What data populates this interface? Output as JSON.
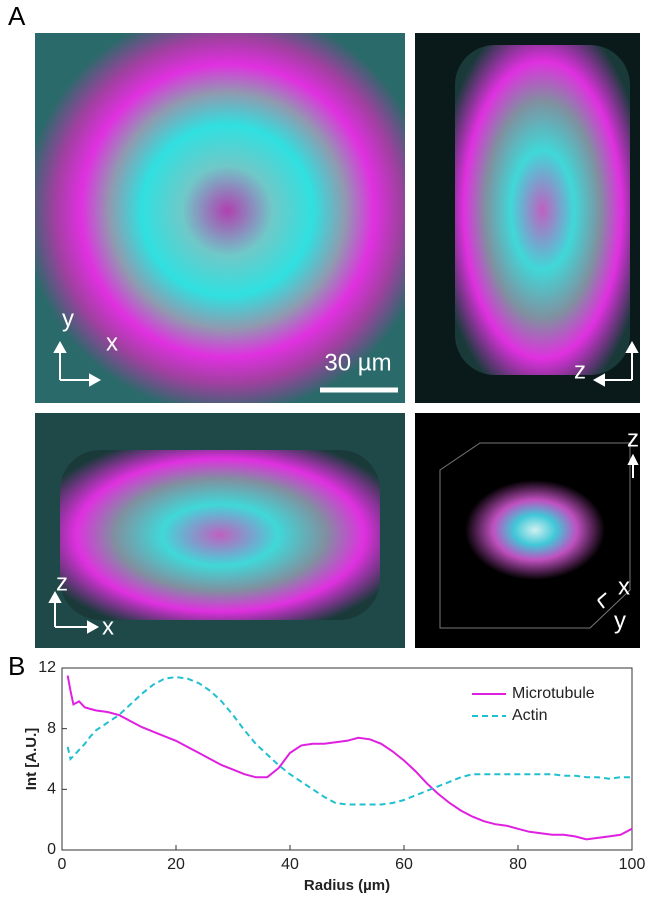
{
  "panel_a": {
    "label": "A",
    "annotations": [
      "y",
      "x",
      "30 µm",
      "z",
      "z",
      "x",
      "z",
      "x",
      "y"
    ]
  },
  "panel_b": {
    "label": "B"
  },
  "chart_data": {
    "type": "line",
    "x_label": "Radius (µm)",
    "y_label": "Int [A.U.]",
    "x": [
      1,
      1.5,
      2,
      3,
      4,
      5,
      6,
      8,
      10,
      12,
      14,
      16,
      18,
      20,
      22,
      24,
      26,
      28,
      30,
      32,
      34,
      36,
      38,
      40,
      42,
      44,
      46,
      48,
      50,
      52,
      54,
      56,
      58,
      60,
      62,
      64,
      66,
      68,
      70,
      72,
      74,
      76,
      78,
      80,
      82,
      84,
      86,
      88,
      90,
      92,
      94,
      96,
      98,
      100
    ],
    "series": [
      {
        "name": "Microtubule",
        "color": "#e020e0",
        "dash": "solid",
        "values": [
          11.5,
          10.5,
          9.6,
          9.8,
          9.4,
          9.3,
          9.2,
          9.1,
          8.9,
          8.5,
          8.1,
          7.8,
          7.5,
          7.2,
          6.8,
          6.4,
          6.0,
          5.6,
          5.3,
          5.0,
          4.8,
          4.8,
          5.4,
          6.4,
          6.9,
          7.0,
          7.0,
          7.1,
          7.2,
          7.4,
          7.3,
          7.0,
          6.5,
          5.9,
          5.2,
          4.4,
          3.7,
          3.1,
          2.6,
          2.2,
          1.9,
          1.7,
          1.6,
          1.4,
          1.2,
          1.1,
          1.0,
          1.0,
          0.9,
          0.7,
          0.8,
          0.9,
          1.0,
          1.4
        ]
      },
      {
        "name": "Actin",
        "color": "#20c0d0",
        "dash": "dashed",
        "values": [
          6.8,
          6.0,
          6.2,
          6.6,
          7.0,
          7.5,
          7.9,
          8.4,
          8.9,
          9.6,
          10.3,
          10.9,
          11.3,
          11.4,
          11.3,
          11.0,
          10.5,
          9.8,
          8.9,
          7.9,
          7.0,
          6.3,
          5.6,
          5.0,
          4.5,
          4.0,
          3.5,
          3.1,
          3.0,
          3.0,
          3.0,
          3.0,
          3.1,
          3.3,
          3.6,
          3.9,
          4.2,
          4.5,
          4.8,
          5.0,
          5.0,
          5.0,
          5.0,
          5.0,
          5.0,
          5.0,
          5.0,
          4.9,
          4.9,
          4.8,
          4.8,
          4.7,
          4.8,
          4.8
        ]
      }
    ],
    "xlim": [
      0,
      100
    ],
    "xticks": [
      0,
      20,
      40,
      60,
      80,
      100
    ],
    "ylim": [
      0,
      12
    ],
    "yticks": [
      0,
      4,
      8,
      12
    ],
    "legend": "upper right",
    "grid": false
  }
}
